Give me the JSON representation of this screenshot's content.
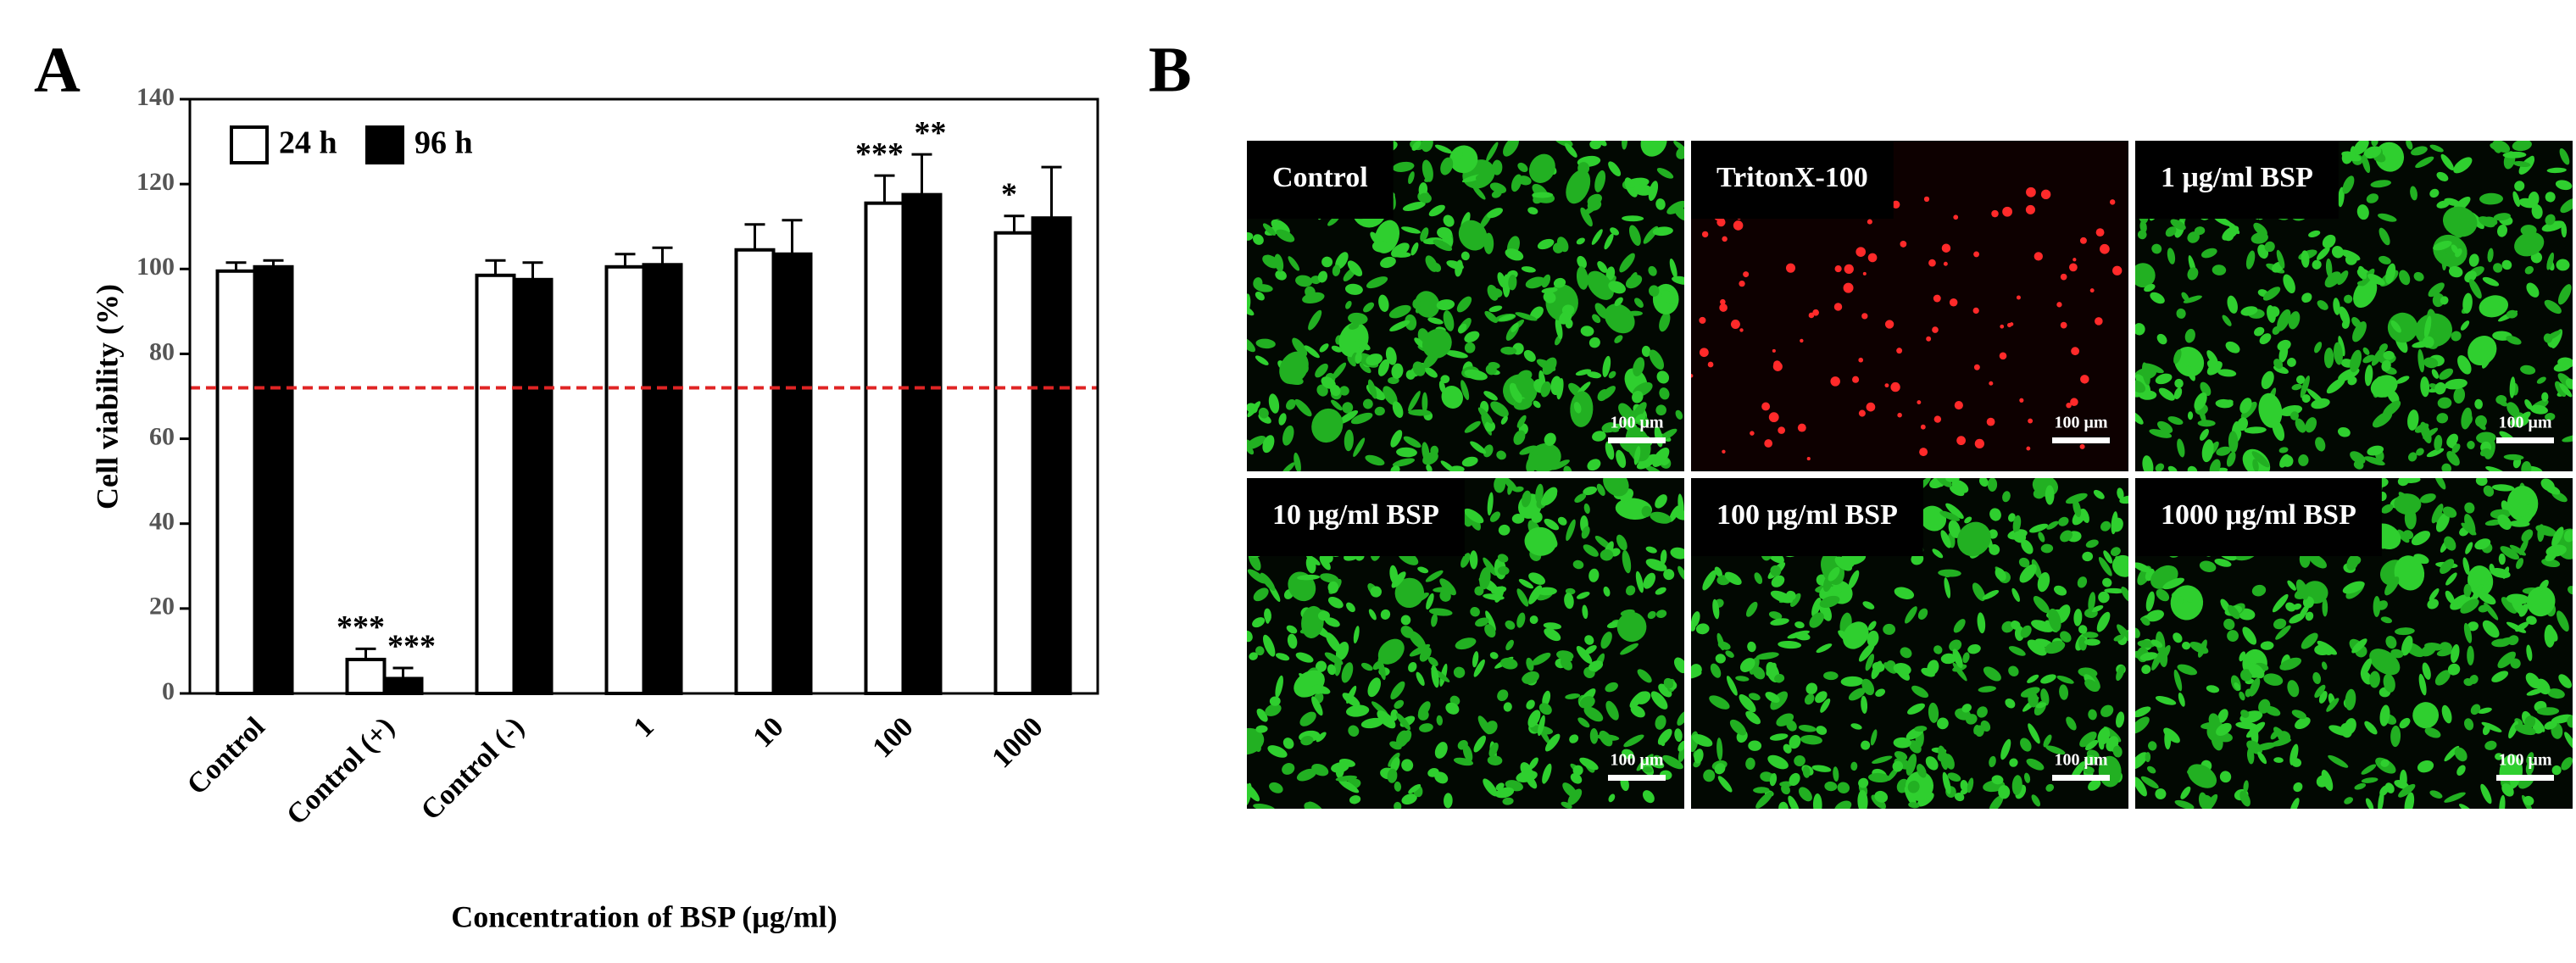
{
  "chart_data": {
    "type": "bar",
    "panel_label": "A",
    "x_label": "Concentration of BSP (μg/ml)",
    "y_label": "Cell viability (%)",
    "categories": [
      "Control",
      "Control (+)",
      "Control (-)",
      "1",
      "10",
      "100",
      "1000"
    ],
    "series": [
      {
        "name": "24 h",
        "color": "#ffffff",
        "values": [
          99.5,
          8,
          98.5,
          100.5,
          104.5,
          115.5,
          108.5
        ],
        "errors": [
          2,
          2.5,
          3.5,
          3,
          6,
          6.5,
          4
        ],
        "significance": [
          null,
          "***",
          null,
          null,
          null,
          "***",
          "*"
        ]
      },
      {
        "name": "96 h",
        "color": "#000000",
        "values": [
          100.5,
          3.5,
          97.5,
          101,
          103.5,
          117.5,
          112
        ],
        "errors": [
          1.5,
          2.5,
          4,
          4,
          8,
          9.5,
          12
        ],
        "significance": [
          null,
          "***",
          null,
          null,
          null,
          "**",
          null
        ]
      }
    ],
    "ylim": [
      0,
      140
    ],
    "yticks": [
      0,
      20,
      40,
      60,
      80,
      100,
      120,
      140
    ],
    "grid": false,
    "legend": "top-left",
    "reference_line": {
      "value": 72,
      "color": "#e02424"
    }
  },
  "panel_b": {
    "label": "B",
    "images": [
      {
        "caption": "Control",
        "scale_bar": "100 μm",
        "stain": "green"
      },
      {
        "caption": "TritonX-100",
        "scale_bar": "100 μm",
        "stain": "red"
      },
      {
        "caption": "1 μg/ml BSP",
        "scale_bar": "100 μm",
        "stain": "green"
      },
      {
        "caption": "10 μg/ml BSP",
        "scale_bar": "100 μm",
        "stain": "green"
      },
      {
        "caption": "100 μg/ml BSP",
        "scale_bar": "100 μm",
        "stain": "green"
      },
      {
        "caption": "1000 μg/ml BSP",
        "scale_bar": "100 μm",
        "stain": "green"
      }
    ]
  }
}
